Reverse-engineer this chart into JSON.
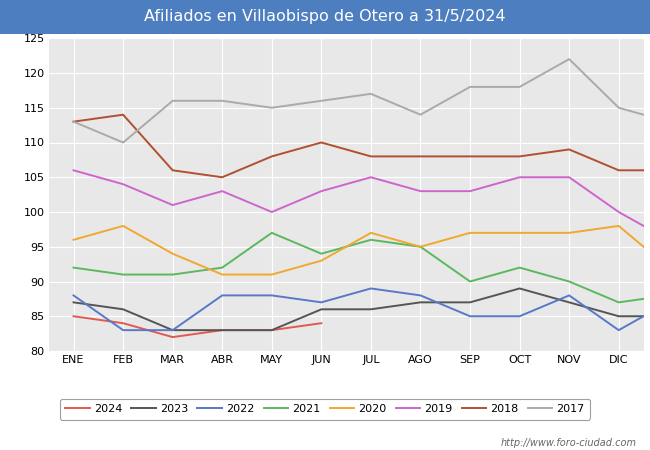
{
  "title": "Afiliados en Villaobispo de Otero a 31/5/2024",
  "title_bg_color": "#4d7ebf",
  "title_text_color": "#ffffff",
  "months": [
    "ENE",
    "FEB",
    "MAR",
    "ABR",
    "MAY",
    "JUN",
    "JUL",
    "AGO",
    "SEP",
    "OCT",
    "NOV",
    "DIC"
  ],
  "ylim": [
    80,
    125
  ],
  "yticks": [
    80,
    85,
    90,
    95,
    100,
    105,
    110,
    115,
    120,
    125
  ],
  "series": {
    "2024": {
      "color": "#e05a4e",
      "data": [
        85,
        84,
        82,
        83,
        83,
        84,
        null,
        null,
        null,
        null,
        null,
        null
      ]
    },
    "2023": {
      "color": "#555555",
      "data": [
        87,
        86,
        83,
        83,
        83,
        86,
        86,
        87,
        87,
        89,
        87,
        85,
        85
      ]
    },
    "2022": {
      "color": "#5878c8",
      "data": [
        88,
        83,
        83,
        88,
        88,
        87,
        89,
        88,
        85,
        85,
        88,
        83,
        87
      ]
    },
    "2021": {
      "color": "#5cb85c",
      "data": [
        92,
        91,
        91,
        92,
        97,
        94,
        96,
        95,
        90,
        92,
        90,
        87,
        88
      ]
    },
    "2020": {
      "color": "#f0a830",
      "data": [
        96,
        98,
        94,
        91,
        91,
        93,
        97,
        95,
        97,
        97,
        97,
        98,
        92
      ]
    },
    "2019": {
      "color": "#cc66cc",
      "data": [
        106,
        104,
        101,
        103,
        100,
        103,
        105,
        103,
        103,
        105,
        105,
        100,
        96
      ]
    },
    "2018": {
      "color": "#b05030",
      "data": [
        113,
        114,
        106,
        105,
        108,
        110,
        108,
        108,
        108,
        108,
        109,
        106,
        106
      ]
    },
    "2017": {
      "color": "#aaaaaa",
      "data": [
        113,
        110,
        116,
        116,
        115,
        116,
        117,
        114,
        118,
        118,
        122,
        115,
        113
      ]
    }
  },
  "legend_order": [
    "2024",
    "2023",
    "2022",
    "2021",
    "2020",
    "2019",
    "2018",
    "2017"
  ],
  "watermark": "http://www.foro-ciudad.com",
  "plot_bg_color": "#e8e8e8",
  "fig_bg_color": "#ffffff"
}
